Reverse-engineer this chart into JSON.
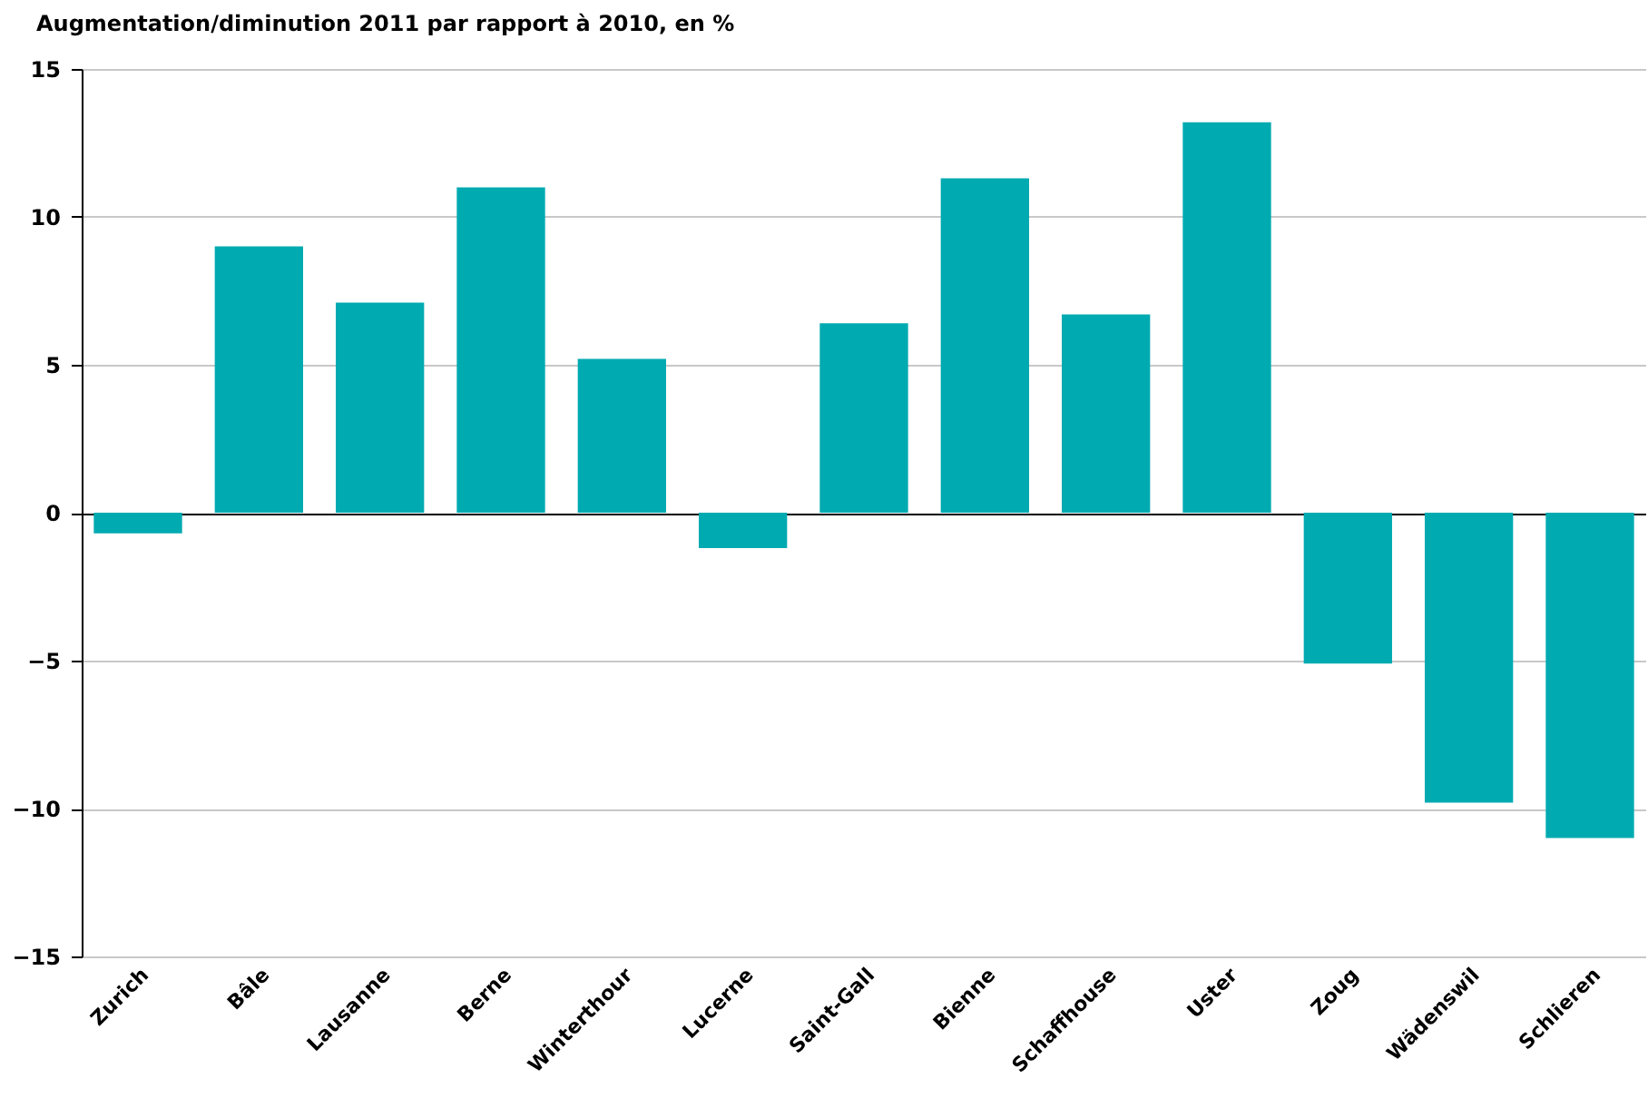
{
  "chart_data": {
    "type": "bar",
    "title": "Augmentation/diminution 2011 par rapport à 2010, en %",
    "categories": [
      "Zurich",
      "Bâle",
      "Lausanne",
      "Berne",
      "Winterthour",
      "Lucerne",
      "Saint-Gall",
      "Bienne",
      "Schaffhouse",
      "Uster",
      "Zoug",
      "Wädenswil",
      "Schlieren"
    ],
    "values": [
      -0.7,
      9.0,
      7.1,
      11.0,
      5.2,
      -1.2,
      6.4,
      11.3,
      6.7,
      13.2,
      -5.1,
      -9.8,
      -11.0
    ],
    "color": "#00aab1",
    "ylim": [
      -15,
      15
    ],
    "yticks": [
      -15,
      -10,
      -5,
      0,
      5,
      10,
      15
    ],
    "grid": "y"
  }
}
